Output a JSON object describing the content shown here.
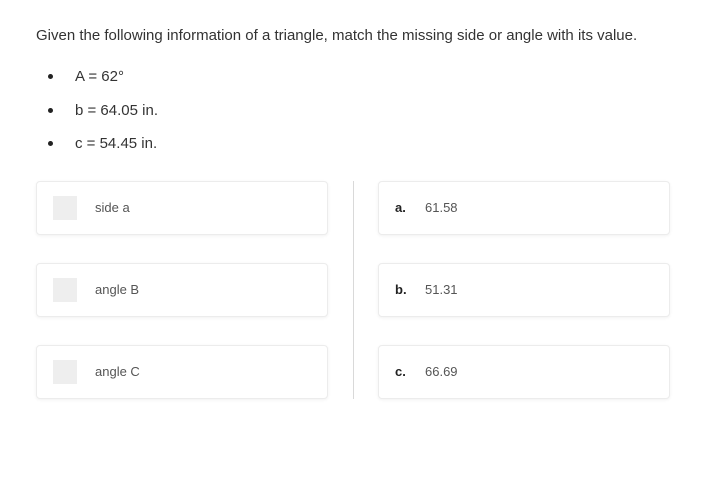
{
  "question": {
    "prompt": "Given the following information of a triangle, match the missing side or angle with its value.",
    "given": [
      "A = 62°",
      "b = 64.05 in.",
      "c = 54.45 in."
    ]
  },
  "matching": {
    "left": [
      {
        "label": "side a"
      },
      {
        "label": "angle B"
      },
      {
        "label": "angle C"
      }
    ],
    "right": [
      {
        "letter": "a.",
        "value": "61.58"
      },
      {
        "letter": "b.",
        "value": "51.31"
      },
      {
        "letter": "c.",
        "value": "66.69"
      }
    ]
  },
  "colors": {
    "card_bg": "#ffffff",
    "card_border": "#ececec",
    "slot_bg": "#eeeeee",
    "divider": "#d9d9d9",
    "text": "#333333",
    "muted_text": "#555555",
    "bold_text": "#222222"
  }
}
